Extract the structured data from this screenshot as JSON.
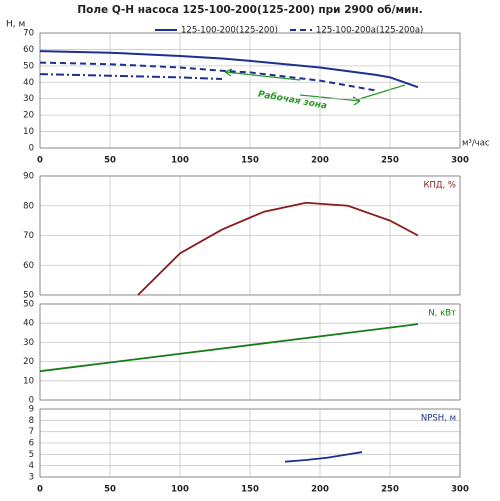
{
  "chart_data": [
    {
      "type": "line",
      "title": "Поле Q-H насоса 125-100-200(125-200) при 2900 об/мин.",
      "ylabel": "H, м",
      "xlabel": "м³/час",
      "annotation": "Рабочая зона",
      "grid": true,
      "x": [
        0,
        50,
        100,
        130,
        150,
        200,
        240,
        250,
        270
      ],
      "series": [
        {
          "name": "125-100-200(125-200)",
          "color": "#1f2f8f",
          "dash": "solid",
          "values": [
            59,
            58,
            56,
            54.5,
            53,
            49,
            44.5,
            43,
            37
          ]
        },
        {
          "name": "125-100-200а(125-200а)",
          "color": "#1f2f8f",
          "dash": "dashed",
          "values": [
            52,
            51,
            49,
            47,
            46,
            41,
            35,
            null,
            null
          ]
        },
        {
          "color": "#1f2f8f",
          "dash": "dashdot",
          "values": [
            45,
            44,
            43,
            42,
            null,
            null,
            null,
            null,
            null
          ]
        }
      ],
      "xlim": [
        0,
        300
      ],
      "xticks": [
        0,
        50,
        100,
        150,
        200,
        250,
        300
      ],
      "ylim": [
        0,
        70
      ],
      "yticks": [
        0,
        10,
        20,
        30,
        40,
        50,
        60,
        70
      ]
    },
    {
      "type": "line",
      "ylabel": "КПД, %",
      "grid": true,
      "x": [
        70,
        100,
        130,
        160,
        190,
        220,
        250,
        270
      ],
      "series": [
        {
          "color": "#8b1a1a",
          "dash": "solid",
          "values": [
            50,
            64,
            72,
            78,
            81,
            80,
            75,
            70
          ]
        }
      ],
      "xlim": [
        0,
        300
      ],
      "xticks": [
        0,
        50,
        100,
        150,
        200,
        250,
        300
      ],
      "ylim": [
        50,
        90
      ],
      "yticks": [
        50,
        60,
        70,
        80,
        90
      ]
    },
    {
      "type": "line",
      "ylabel": "N, кВт",
      "grid": true,
      "x": [
        0,
        270
      ],
      "series": [
        {
          "color": "#1a7a1a",
          "dash": "solid",
          "values": [
            15,
            39.5
          ]
        }
      ],
      "xlim": [
        0,
        300
      ],
      "xticks": [
        0,
        50,
        100,
        150,
        200,
        250,
        300
      ],
      "ylim": [
        0,
        50
      ],
      "yticks": [
        0,
        10,
        20,
        30,
        40,
        50
      ]
    },
    {
      "type": "line",
      "ylabel": "NPSH, м",
      "grid": true,
      "x": [
        175,
        190,
        205,
        220,
        230
      ],
      "series": [
        {
          "color": "#1f2f8f",
          "dash": "solid",
          "values": [
            4.35,
            4.5,
            4.7,
            5.0,
            5.2
          ]
        }
      ],
      "xlim": [
        0,
        300
      ],
      "xticks": [
        0,
        50,
        100,
        150,
        200,
        250,
        300
      ],
      "ylim": [
        3,
        9
      ],
      "yticks": [
        3,
        4,
        5,
        6,
        7,
        8,
        9
      ]
    }
  ]
}
